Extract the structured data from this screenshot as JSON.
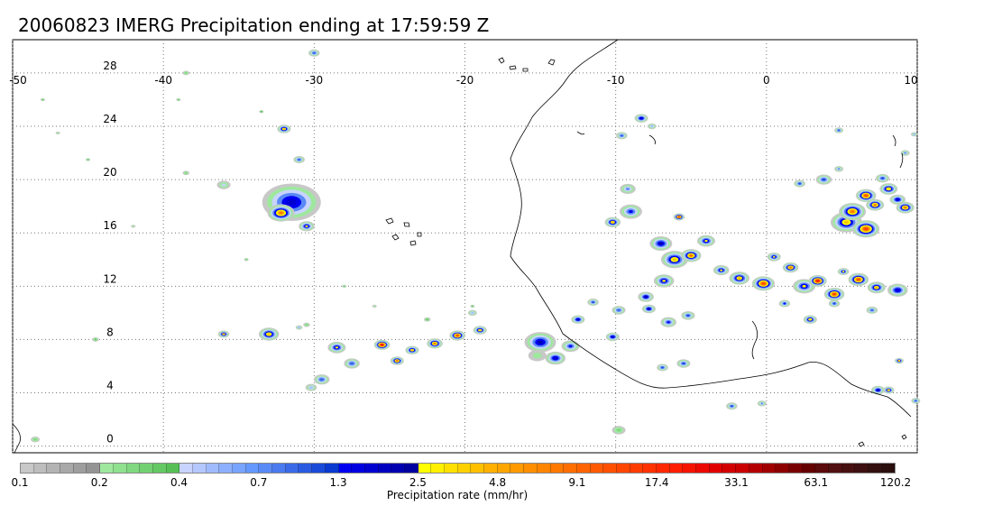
{
  "title": "20060823 IMERG Precipitation ending at 17:59:59 Z",
  "map": {
    "lon_labels": [
      "-50",
      "-40",
      "-30",
      "-20",
      "-10",
      "0",
      "10"
    ],
    "lat_labels": [
      "28",
      "24",
      "20",
      "16",
      "12",
      "8",
      "4",
      "0"
    ],
    "lon_range": [
      -50,
      10
    ],
    "lat_range": [
      -0.5,
      30.5
    ],
    "grid": "dotted",
    "coastline_color": "#000000"
  },
  "colorbar": {
    "title": "Precipitation rate (mm/hr)",
    "tick_labels": [
      "0.1",
      "0.2",
      "0.4",
      "0.7",
      "1.3",
      "2.5",
      "4.8",
      "9.1",
      "17.4",
      "33.1",
      "63.1",
      "120.2"
    ],
    "colors": [
      "#c8c8c8",
      "#bdbdbd",
      "#b3b3b3",
      "#a8a8a8",
      "#9e9e9e",
      "#949494",
      "#9ee89e",
      "#8fe08f",
      "#80d880",
      "#72d072",
      "#64c864",
      "#56c056",
      "#c8d4ff",
      "#b4c8ff",
      "#a0bcff",
      "#8cb0ff",
      "#78a4ff",
      "#6498ff",
      "#5a8af5",
      "#4a7aee",
      "#3a6ae6",
      "#2a5adf",
      "#1a4ad8",
      "#0a3ad0",
      "#0000f0",
      "#0000e0",
      "#0000d0",
      "#0000c0",
      "#0000b0",
      "#0000a0",
      "#ffff00",
      "#fff000",
      "#ffe000",
      "#ffd000",
      "#ffc000",
      "#ffb000",
      "#ffa500",
      "#ff9a00",
      "#ff8f00",
      "#ff8400",
      "#ff7900",
      "#ff6e00",
      "#ff6400",
      "#ff5a00",
      "#ff5000",
      "#ff4600",
      "#ff3c00",
      "#ff3200",
      "#ff2800",
      "#ff1e00",
      "#f51400",
      "#eb0a00",
      "#e10000",
      "#d20000",
      "#c80000",
      "#b40000",
      "#a00000",
      "#8c0000",
      "#780000",
      "#640000",
      "#5a0a0a",
      "#501010",
      "#461010",
      "#3c1010",
      "#321010",
      "#2a0e0e"
    ]
  }
}
